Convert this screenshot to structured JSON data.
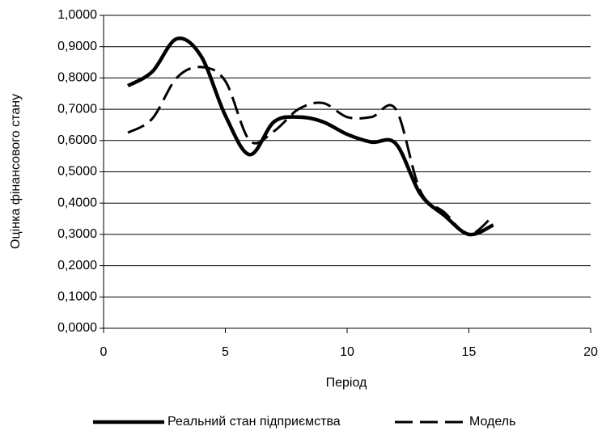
{
  "chart_data": {
    "type": "line",
    "x_label": "Період",
    "y_label": "Оцінка фінансового стану",
    "x": [
      1,
      2,
      3,
      4,
      5,
      6,
      7,
      8,
      9,
      10,
      11,
      12,
      13,
      14,
      15,
      16
    ],
    "series": [
      {
        "name": "Реальний стан підприємства",
        "color": "#000000",
        "dash": "solid",
        "values": [
          0.775,
          0.82,
          0.925,
          0.87,
          0.68,
          0.555,
          0.66,
          0.675,
          0.66,
          0.62,
          0.595,
          0.59,
          0.43,
          0.36,
          0.3,
          0.33
        ]
      },
      {
        "name": "Модель",
        "color": "#000000",
        "dash": "dashed",
        "values": [
          0.625,
          0.67,
          0.8,
          0.835,
          0.79,
          0.6,
          0.63,
          0.7,
          0.72,
          0.675,
          0.675,
          0.7,
          0.44,
          0.37,
          0.3,
          0.36
        ]
      }
    ],
    "xlim": [
      0,
      20
    ],
    "xticks": [
      0,
      5,
      10,
      15,
      20
    ],
    "ylim": [
      0,
      1
    ],
    "yticks": [
      {
        "value": 0,
        "label": "0,0000"
      },
      {
        "value": 0.1,
        "label": "0,1000"
      },
      {
        "value": 0.2,
        "label": "0,2000"
      },
      {
        "value": 0.3,
        "label": "0,3000"
      },
      {
        "value": 0.4,
        "label": "0,4000"
      },
      {
        "value": 0.5,
        "label": "0,5000"
      },
      {
        "value": 0.6,
        "label": "0,6000"
      },
      {
        "value": 0.7,
        "label": "0,7000"
      },
      {
        "value": 0.8,
        "label": "0,8000"
      },
      {
        "value": 0.9,
        "label": "0,9000"
      },
      {
        "value": 1,
        "label": "1,0000"
      }
    ],
    "grid": true,
    "legend": "bottom"
  }
}
